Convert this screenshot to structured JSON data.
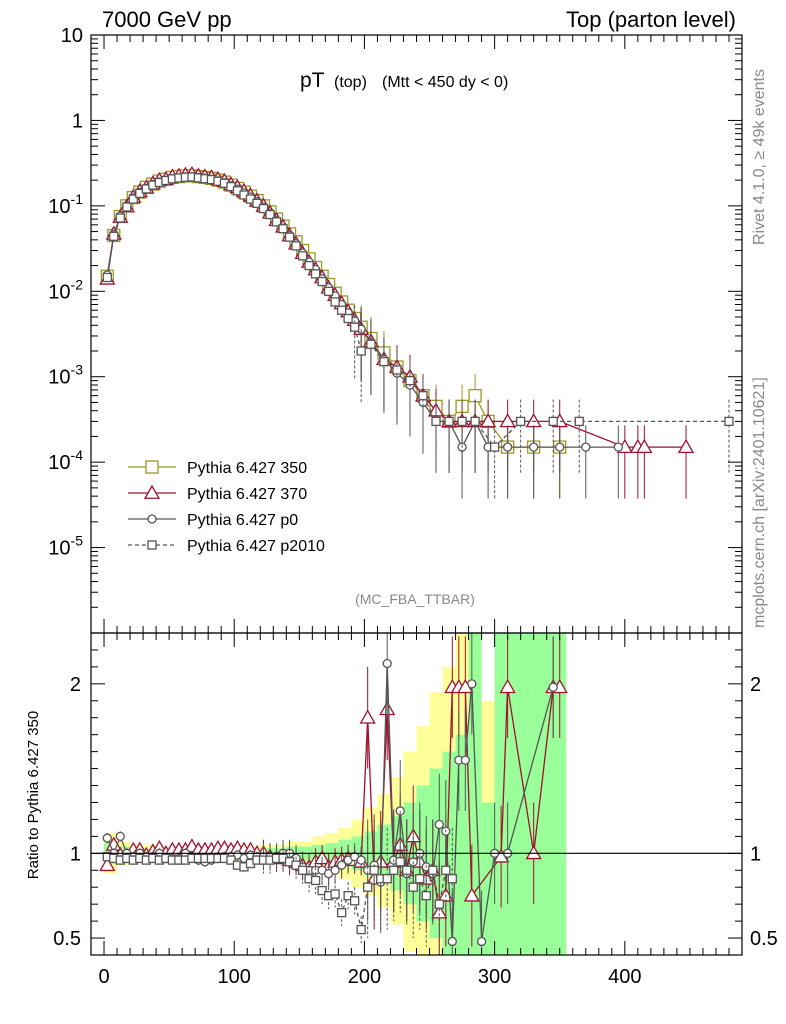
{
  "header": {
    "left": "7000 GeV pp",
    "right": "Top (parton level)"
  },
  "side_labels": {
    "rivet": "Rivet 4.1.0, ≥ 49k events",
    "mcplots": "mcplots.cern.ch [arXiv:2401.10621]"
  },
  "plot_title": {
    "main": "pT",
    "sub1": "(top)",
    "sub2": "(Mtt < 450 dy < 0)"
  },
  "watermark": "(MC_FBA_TTBAR)",
  "colors": {
    "p350": "#9a9a22",
    "p370": "#a0102e",
    "p0": "#555555",
    "p2010": "#555555",
    "band_yellow": "#ffff99",
    "band_green": "#99ff99"
  },
  "chart_data": [
    {
      "type": "line",
      "panel": "main",
      "yscale": "log",
      "xlim": [
        -10,
        490
      ],
      "ylim": [
        1e-06,
        10
      ],
      "xlabel": "",
      "ylabel": "",
      "y_tick_labels": [
        "10",
        "1",
        "10^-1",
        "10^-2",
        "10^-3",
        "10^-4",
        "10^-5"
      ],
      "legend_position": "left-middle",
      "series": [
        {
          "name": "Pythia 6.427 350",
          "marker": "square",
          "style": "solid",
          "x": [
            2.5,
            7.5,
            12.5,
            17.5,
            22.5,
            27.5,
            32.5,
            37.5,
            42.5,
            47.5,
            52.5,
            57.5,
            62.5,
            67.5,
            72.5,
            77.5,
            82.5,
            87.5,
            92.5,
            97.5,
            102.5,
            107.5,
            112.5,
            117.5,
            122.5,
            127.5,
            132.5,
            137.5,
            142.5,
            147.5,
            152.5,
            157.5,
            162.5,
            167.5,
            172.5,
            177.5,
            182.5,
            187.5,
            192.5,
            197.5,
            205,
            215,
            225,
            235,
            245,
            255,
            265,
            275,
            285,
            295,
            310,
            330,
            350
          ],
          "y": [
            0.015,
            0.045,
            0.075,
            0.1,
            0.125,
            0.145,
            0.165,
            0.18,
            0.195,
            0.205,
            0.215,
            0.22,
            0.225,
            0.225,
            0.22,
            0.215,
            0.21,
            0.2,
            0.19,
            0.175,
            0.16,
            0.145,
            0.13,
            0.115,
            0.1,
            0.085,
            0.07,
            0.058,
            0.047,
            0.038,
            0.03,
            0.024,
            0.019,
            0.015,
            0.012,
            0.0095,
            0.0075,
            0.006,
            0.0048,
            0.0038,
            0.0028,
            0.0019,
            0.0013,
            0.0009,
            0.0006,
            0.00045,
            0.0003,
            0.00045,
            0.0006,
            0.0003,
            0.00015,
            0.00015,
            0.00015
          ]
        },
        {
          "name": "Pythia 6.427 370",
          "marker": "triangle",
          "style": "solid",
          "x": [
            2.5,
            7.5,
            12.5,
            17.5,
            22.5,
            27.5,
            32.5,
            37.5,
            42.5,
            47.5,
            52.5,
            57.5,
            62.5,
            67.5,
            72.5,
            77.5,
            82.5,
            87.5,
            92.5,
            97.5,
            102.5,
            107.5,
            112.5,
            117.5,
            122.5,
            127.5,
            132.5,
            137.5,
            142.5,
            147.5,
            152.5,
            157.5,
            162.5,
            167.5,
            172.5,
            177.5,
            182.5,
            187.5,
            192.5,
            197.5,
            205,
            215,
            225,
            235,
            245,
            255,
            265,
            275,
            285,
            295,
            310,
            330,
            350,
            400,
            410,
            415,
            447
          ],
          "y": [
            0.014,
            0.047,
            0.074,
            0.098,
            0.127,
            0.148,
            0.163,
            0.182,
            0.2,
            0.205,
            0.22,
            0.225,
            0.23,
            0.235,
            0.225,
            0.22,
            0.215,
            0.205,
            0.195,
            0.178,
            0.165,
            0.148,
            0.132,
            0.115,
            0.1,
            0.083,
            0.068,
            0.057,
            0.045,
            0.036,
            0.028,
            0.022,
            0.018,
            0.0145,
            0.011,
            0.009,
            0.0072,
            0.0058,
            0.0046,
            0.0036,
            0.0026,
            0.0016,
            0.0013,
            0.001,
            0.0006,
            0.0004,
            0.0003,
            0.0003,
            0.0003,
            0.0003,
            0.0003,
            0.0003,
            0.0003,
            0.00015,
            0.00015,
            0.00015,
            0.00015
          ]
        },
        {
          "name": "Pythia 6.427 p0",
          "marker": "circle",
          "style": "solid",
          "x": [
            2.5,
            7.5,
            12.5,
            17.5,
            22.5,
            27.5,
            32.5,
            37.5,
            42.5,
            47.5,
            52.5,
            57.5,
            62.5,
            67.5,
            72.5,
            77.5,
            82.5,
            87.5,
            92.5,
            97.5,
            102.5,
            107.5,
            112.5,
            117.5,
            122.5,
            127.5,
            132.5,
            137.5,
            142.5,
            147.5,
            152.5,
            157.5,
            162.5,
            167.5,
            172.5,
            177.5,
            182.5,
            187.5,
            192.5,
            197.5,
            205,
            215,
            225,
            235,
            245,
            255,
            265,
            275,
            285,
            295,
            310,
            330,
            350,
            370,
            395
          ],
          "y": [
            0.0155,
            0.046,
            0.076,
            0.1,
            0.123,
            0.143,
            0.16,
            0.178,
            0.19,
            0.2,
            0.208,
            0.213,
            0.218,
            0.22,
            0.215,
            0.21,
            0.205,
            0.196,
            0.186,
            0.172,
            0.157,
            0.142,
            0.127,
            0.112,
            0.097,
            0.082,
            0.067,
            0.055,
            0.045,
            0.036,
            0.028,
            0.022,
            0.018,
            0.014,
            0.011,
            0.0088,
            0.007,
            0.0056,
            0.0045,
            0.0036,
            0.0025,
            0.0016,
            0.0011,
            0.0008,
            0.0005,
            0.0003,
            0.0003,
            0.00015,
            0.0003,
            0.00015,
            0.00015,
            0.00015,
            0.00015,
            0.00015,
            0.00015
          ]
        },
        {
          "name": "Pythia 6.427 p2010",
          "marker": "square-small",
          "style": "dashed",
          "x": [
            2.5,
            7.5,
            12.5,
            17.5,
            22.5,
            27.5,
            32.5,
            37.5,
            42.5,
            47.5,
            52.5,
            57.5,
            62.5,
            67.5,
            72.5,
            77.5,
            82.5,
            87.5,
            92.5,
            97.5,
            102.5,
            107.5,
            112.5,
            117.5,
            122.5,
            127.5,
            132.5,
            137.5,
            142.5,
            147.5,
            152.5,
            157.5,
            162.5,
            167.5,
            172.5,
            177.5,
            182.5,
            187.5,
            192.5,
            197.5,
            205,
            215,
            225,
            235,
            245,
            255,
            265,
            275,
            285,
            300,
            320,
            345,
            365,
            480
          ],
          "y": [
            0.0145,
            0.044,
            0.072,
            0.097,
            0.12,
            0.14,
            0.158,
            0.175,
            0.188,
            0.198,
            0.207,
            0.212,
            0.216,
            0.218,
            0.213,
            0.208,
            0.203,
            0.194,
            0.184,
            0.168,
            0.15,
            0.134,
            0.12,
            0.107,
            0.093,
            0.079,
            0.065,
            0.054,
            0.043,
            0.034,
            0.026,
            0.02,
            0.016,
            0.013,
            0.01,
            0.0075,
            0.006,
            0.0048,
            0.0038,
            0.002,
            0.0024,
            0.0015,
            0.0012,
            0.0009,
            0.0006,
            0.0003,
            0.0003,
            0.0003,
            0.0003,
            0.00015,
            0.0003,
            0.0003,
            0.0003,
            0.0003
          ]
        }
      ]
    },
    {
      "type": "line",
      "panel": "ratio",
      "ylabel": "Ratio to Pythia 6.427 350",
      "xlim": [
        -10,
        490
      ],
      "ylim": [
        0.4,
        2.3
      ],
      "x_ticks": [
        0,
        100,
        200,
        300,
        400
      ],
      "y_ticks": [
        0.5,
        1,
        2
      ],
      "series": [
        {
          "name": "Pythia 6.427 370",
          "x": [
            2.5,
            7.5,
            12.5,
            17.5,
            22.5,
            27.5,
            32.5,
            37.5,
            42.5,
            47.5,
            52.5,
            57.5,
            62.5,
            67.5,
            72.5,
            77.5,
            82.5,
            87.5,
            92.5,
            97.5,
            102.5,
            107.5,
            112.5,
            117.5,
            122.5,
            127.5,
            132.5,
            137.5,
            142.5,
            147.5,
            152.5,
            157.5,
            162.5,
            167.5,
            172.5,
            177.5,
            182.5,
            187.5,
            192.5,
            197.5,
            202.5,
            207.5,
            212.5,
            217.5,
            222.5,
            227.5,
            232.5,
            237.5,
            242.5,
            247.5,
            252.5,
            257.5,
            262.5,
            267.5,
            272.5,
            277.5,
            282.5,
            305,
            310,
            330,
            345,
            350
          ],
          "y": [
            0.93,
            1.05,
            0.99,
            0.98,
            1.02,
            1.02,
            0.99,
            1.01,
            1.03,
            1.0,
            1.02,
            1.02,
            1.02,
            1.04,
            1.02,
            1.02,
            1.02,
            1.03,
            1.03,
            1.02,
            1.03,
            1.02,
            1.02,
            1.0,
            1.0,
            0.98,
            0.97,
            0.98,
            0.96,
            0.95,
            0.93,
            0.92,
            0.95,
            0.97,
            0.92,
            0.95,
            0.96,
            0.97,
            0.96,
            0.95,
            1.8,
            0.85,
            0.95,
            1.85,
            0.95,
            1.05,
            0.9,
            1.1,
            0.95,
            0.85,
            0.9,
            0.65,
            0.75,
            1.98,
            1.98,
            1.98,
            0.75,
            0.98,
            1.98,
            1.0,
            1.98,
            1.98
          ]
        },
        {
          "name": "Pythia 6.427 p0",
          "x": [
            2.5,
            7.5,
            12.5,
            17.5,
            22.5,
            27.5,
            32.5,
            37.5,
            42.5,
            47.5,
            52.5,
            57.5,
            62.5,
            67.5,
            72.5,
            77.5,
            82.5,
            87.5,
            92.5,
            97.5,
            102.5,
            107.5,
            112.5,
            117.5,
            122.5,
            127.5,
            132.5,
            137.5,
            142.5,
            147.5,
            152.5,
            157.5,
            162.5,
            167.5,
            172.5,
            177.5,
            182.5,
            187.5,
            192.5,
            197.5,
            202.5,
            207.5,
            212.5,
            217.5,
            222.5,
            227.5,
            232.5,
            237.5,
            242.5,
            247.5,
            252.5,
            257.5,
            262.5,
            267.5,
            272.5,
            277.5,
            282.5,
            290,
            300,
            310,
            345
          ],
          "y": [
            1.09,
            1.0,
            1.1,
            1.0,
            0.98,
            1.0,
            0.98,
            0.98,
            1.0,
            0.97,
            0.97,
            0.97,
            1.0,
            0.98,
            0.96,
            0.95,
            0.96,
            0.97,
            0.98,
            0.98,
            0.99,
            0.97,
            0.99,
            0.98,
            0.98,
            0.98,
            0.98,
            1.0,
            1.0,
            0.97,
            0.92,
            0.9,
            0.9,
            0.9,
            0.88,
            0.9,
            0.93,
            0.96,
            0.98,
            0.96,
            0.9,
            0.93,
            0.83,
            2.12,
            0.96,
            1.25,
            0.88,
            0.95,
            1.0,
            0.92,
            0.88,
            1.17,
            1.13,
            0.48,
            1.55,
            1.55,
            2.0,
            0.48,
            1.0,
            1.0,
            1.98
          ]
        },
        {
          "name": "Pythia 6.427 p2010",
          "x": [
            2.5,
            7.5,
            12.5,
            17.5,
            22.5,
            27.5,
            32.5,
            37.5,
            42.5,
            47.5,
            52.5,
            57.5,
            62.5,
            67.5,
            72.5,
            77.5,
            82.5,
            87.5,
            92.5,
            97.5,
            102.5,
            107.5,
            112.5,
            117.5,
            122.5,
            127.5,
            132.5,
            137.5,
            142.5,
            147.5,
            152.5,
            157.5,
            162.5,
            167.5,
            172.5,
            177.5,
            182.5,
            187.5,
            192.5,
            197.5,
            202.5,
            207.5,
            212.5,
            217.5,
            222.5,
            227.5,
            232.5,
            237.5,
            242.5,
            247.5,
            252.5,
            257.5,
            262.5,
            267.5
          ],
          "y": [
            0.98,
            0.97,
            0.96,
            0.97,
            0.96,
            0.97,
            0.96,
            0.97,
            0.96,
            0.97,
            0.96,
            0.96,
            0.96,
            0.97,
            0.97,
            0.97,
            0.97,
            0.97,
            0.97,
            0.96,
            0.93,
            0.92,
            0.94,
            0.96,
            0.96,
            0.96,
            0.97,
            0.97,
            0.95,
            0.93,
            0.9,
            0.85,
            0.84,
            0.78,
            0.75,
            0.76,
            0.65,
            0.75,
            0.72,
            0.55,
            0.8,
            0.9,
            0.85,
            0.85,
            0.9,
            0.95,
            0.9,
            0.8,
            0.85,
            0.75,
            0.9,
            0.7,
            0.9,
            0.85
          ]
        }
      ],
      "bands": {
        "x_edges": [
          0,
          10,
          20,
          40,
          60,
          80,
          100,
          120,
          140,
          160,
          170,
          180,
          190,
          200,
          210,
          220,
          230,
          240,
          250,
          260,
          270,
          280,
          290,
          300,
          310,
          330,
          355
        ],
        "yellow_lo": [
          0.88,
          0.93,
          0.95,
          0.96,
          0.97,
          0.97,
          0.96,
          0.95,
          0.93,
          0.9,
          0.88,
          0.85,
          0.8,
          0.75,
          0.68,
          0.58,
          0.42,
          0.4,
          0.4,
          0.4,
          0.4,
          0.4,
          0.4,
          0.4,
          0.4,
          0.4
        ],
        "yellow_hi": [
          1.12,
          1.07,
          1.05,
          1.04,
          1.03,
          1.03,
          1.04,
          1.05,
          1.07,
          1.1,
          1.12,
          1.15,
          1.2,
          1.27,
          1.35,
          1.45,
          1.6,
          1.75,
          1.95,
          2.1,
          2.3,
          2.3,
          1.9,
          2.3,
          2.3,
          2.3
        ],
        "green_lo": [
          0.94,
          0.96,
          0.98,
          0.98,
          0.99,
          0.99,
          0.98,
          0.97,
          0.96,
          0.95,
          0.94,
          0.92,
          0.9,
          0.87,
          0.83,
          0.78,
          0.7,
          0.6,
          0.5,
          0.4,
          0.4,
          0.4,
          0.4,
          0.4,
          0.4,
          0.4
        ],
        "green_hi": [
          1.06,
          1.04,
          1.02,
          1.02,
          1.01,
          1.01,
          1.02,
          1.03,
          1.04,
          1.05,
          1.06,
          1.08,
          1.1,
          1.13,
          1.17,
          1.22,
          1.3,
          1.4,
          1.5,
          1.6,
          1.7,
          2.3,
          1.3,
          2.3,
          2.3,
          2.3
        ]
      }
    }
  ]
}
